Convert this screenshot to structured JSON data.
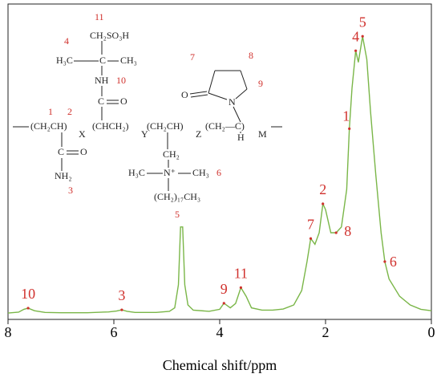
{
  "chart_data": {
    "type": "line",
    "x_label": "Chemical shift/ppm",
    "xlim": [
      8,
      0
    ],
    "xticks": [
      8,
      6,
      4,
      2,
      0
    ],
    "ylim": [
      0,
      100
    ],
    "series": [
      {
        "color": "#7ab648",
        "x": [
          8.0,
          7.8,
          7.7,
          7.62,
          7.5,
          7.3,
          7.0,
          6.5,
          6.1,
          5.95,
          5.85,
          5.75,
          5.6,
          5.2,
          4.95,
          4.85,
          4.78,
          4.74,
          4.7,
          4.66,
          4.6,
          4.5,
          4.2,
          4.0,
          3.92,
          3.8,
          3.7,
          3.6,
          3.5,
          3.4,
          3.2,
          3.0,
          2.8,
          2.6,
          2.45,
          2.35,
          2.28,
          2.2,
          2.12,
          2.05,
          2.0,
          1.9,
          1.8,
          1.7,
          1.6,
          1.55,
          1.5,
          1.43,
          1.38,
          1.3,
          1.22,
          1.15,
          1.05,
          0.95,
          0.88,
          0.8,
          0.6,
          0.4,
          0.2,
          0.0
        ],
        "values": [
          2.2,
          2.5,
          3.5,
          3.9,
          3.0,
          2.4,
          2.3,
          2.3,
          2.6,
          2.9,
          3.3,
          2.8,
          2.4,
          2.4,
          2.8,
          4.0,
          12,
          32,
          32,
          12,
          5,
          3.2,
          2.8,
          3.5,
          5.6,
          4.0,
          5.5,
          11,
          8,
          4,
          3.2,
          3.2,
          3.6,
          5,
          10,
          20,
          28,
          26,
          30,
          40,
          38,
          30,
          30,
          32,
          45,
          66,
          80,
          93,
          89,
          98,
          90,
          72,
          50,
          30,
          20,
          14,
          8,
          5,
          3.5,
          3.0
        ]
      }
    ],
    "annotations": [
      {
        "label": "10",
        "x": 7.62,
        "y": 3.9
      },
      {
        "label": "3",
        "x": 5.85,
        "y": 3.3
      },
      {
        "label": "9",
        "x": 3.92,
        "y": 5.6
      },
      {
        "label": "11",
        "x": 3.6,
        "y": 11
      },
      {
        "label": "7",
        "x": 2.28,
        "y": 28
      },
      {
        "label": "2",
        "x": 2.05,
        "y": 40
      },
      {
        "label": "8",
        "x": 1.8,
        "y": 30
      },
      {
        "label": "1",
        "x": 1.55,
        "y": 66
      },
      {
        "label": "4",
        "x": 1.43,
        "y": 93
      },
      {
        "label": "5",
        "x": 1.3,
        "y": 98
      },
      {
        "label": "6",
        "x": 0.88,
        "y": 20
      }
    ]
  },
  "structure": {
    "labels": [
      "11",
      "CH₂SO₃H",
      "4",
      "H₃C",
      "C",
      "CH₃",
      "NH",
      "10",
      "C",
      "O",
      "1",
      "2",
      "(CH₂CH)",
      "X",
      "(CHCH₂)",
      "Y",
      "(CH₂CH)",
      "Z",
      "(CH₂—C)",
      "H",
      "M",
      "C",
      "O",
      "NH₂",
      "3",
      "CH₂",
      "H₃C",
      "N⁺",
      "CH₃",
      "6",
      "(CH₂)₁₇CH₃",
      "7",
      "8",
      "O",
      "N",
      "9",
      "5"
    ]
  }
}
